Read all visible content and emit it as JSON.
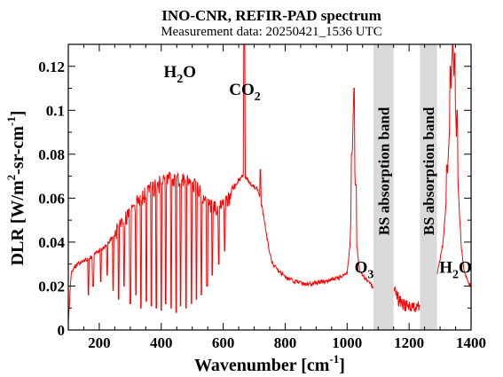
{
  "chart_data": {
    "type": "line",
    "title": "INO-CNR, REFIR-PAD spectrum",
    "subtitle": "Measurement data: 20250421_1536 UTC",
    "xlabel": {
      "main": "Wavenumber [cm",
      "sup": "-1",
      "close": "]"
    },
    "ylabel": {
      "a": "DLR [W/m",
      "sup1": "2",
      "b": "-sr-cm",
      "sup2": "-1",
      "c": "]"
    },
    "xlim": [
      100,
      1400
    ],
    "ylim": [
      0,
      0.13
    ],
    "x_ticks": [
      "200",
      "400",
      "600",
      "800",
      "1000",
      "1200",
      "1400"
    ],
    "y_ticks": [
      "0",
      "0.02",
      "0.04",
      "0.06",
      "0.08",
      "0.1",
      "0.12"
    ],
    "grid": false,
    "line_color": "#ff0000",
    "band_color": "#d9d9d9",
    "bands": [
      {
        "label": "BS absorption band",
        "x_range": [
          1085,
          1150
        ]
      },
      {
        "label": "BS absorption band",
        "x_range": [
          1235,
          1290
        ]
      }
    ],
    "annotations": [
      {
        "base": "H",
        "sub": "2",
        "rest": "O",
        "x": 460,
        "y": 0.115
      },
      {
        "base": "CO",
        "sub": "2",
        "rest": "",
        "x": 670,
        "y": 0.107
      },
      {
        "base": "O",
        "sub": "3",
        "rest": "",
        "x": 1055,
        "y": 0.026
      },
      {
        "base": "H",
        "sub": "2",
        "rest": "O",
        "x": 1350,
        "y": 0.026
      }
    ],
    "series": [
      {
        "envelope": [
          [
            100,
            0.004
          ],
          [
            110,
            0.027
          ],
          [
            130,
            0.03
          ],
          [
            150,
            0.031
          ],
          [
            170,
            0.033
          ],
          [
            190,
            0.035
          ],
          [
            210,
            0.037
          ],
          [
            230,
            0.04
          ],
          [
            250,
            0.044
          ],
          [
            270,
            0.048
          ],
          [
            290,
            0.051
          ],
          [
            310,
            0.055
          ],
          [
            330,
            0.059
          ],
          [
            350,
            0.062
          ],
          [
            370,
            0.064
          ],
          [
            390,
            0.066
          ],
          [
            410,
            0.067
          ],
          [
            430,
            0.068
          ],
          [
            450,
            0.0685
          ],
          [
            470,
            0.068
          ],
          [
            490,
            0.067
          ],
          [
            510,
            0.065
          ],
          [
            530,
            0.062
          ],
          [
            550,
            0.058
          ],
          [
            570,
            0.055
          ],
          [
            590,
            0.055
          ],
          [
            610,
            0.058
          ],
          [
            630,
            0.063
          ],
          [
            650,
            0.068
          ],
          [
            660,
            0.07
          ],
          [
            670,
            0.07
          ],
          [
            680,
            0.068
          ],
          [
            690,
            0.066
          ],
          [
            700,
            0.065
          ],
          [
            710,
            0.064
          ],
          [
            720,
            0.06
          ],
          [
            730,
            0.052
          ],
          [
            740,
            0.043
          ],
          [
            750,
            0.035
          ],
          [
            760,
            0.03
          ],
          [
            780,
            0.027
          ],
          [
            800,
            0.024
          ],
          [
            830,
            0.022
          ],
          [
            860,
            0.021
          ],
          [
            890,
            0.021
          ],
          [
            920,
            0.022
          ],
          [
            950,
            0.023
          ],
          [
            980,
            0.024
          ],
          [
            1000,
            0.026
          ],
          [
            1010,
            0.04
          ],
          [
            1020,
            0.1
          ],
          [
            1030,
            0.04
          ],
          [
            1040,
            0.027
          ],
          [
            1060,
            0.023
          ],
          [
            1080,
            0.02
          ],
          [
            1085,
            0.019
          ],
          [
            1150,
            0.018
          ],
          [
            1170,
            0.013
          ],
          [
            1190,
            0.011
          ],
          [
            1210,
            0.01
          ],
          [
            1230,
            0.011
          ],
          [
            1235,
            0.011
          ],
          [
            1290,
            0.025
          ],
          [
            1300,
            0.032
          ],
          [
            1310,
            0.04
          ],
          [
            1320,
            0.06
          ],
          [
            1330,
            0.09
          ],
          [
            1340,
            0.13
          ],
          [
            1350,
            0.1
          ],
          [
            1360,
            0.06
          ],
          [
            1370,
            0.035
          ],
          [
            1380,
            0.025
          ],
          [
            1390,
            0.022
          ],
          [
            1400,
            0.02
          ]
        ],
        "dips": [
          [
            165,
            0.016
          ],
          [
            180,
            0.02
          ],
          [
            205,
            0.022
          ],
          [
            225,
            0.025
          ],
          [
            245,
            0.018
          ],
          [
            262,
            0.014
          ],
          [
            280,
            0.02
          ],
          [
            300,
            0.012
          ],
          [
            318,
            0.016
          ],
          [
            335,
            0.01
          ],
          [
            352,
            0.013
          ],
          [
            368,
            0.011
          ],
          [
            384,
            0.01
          ],
          [
            400,
            0.009
          ],
          [
            415,
            0.012
          ],
          [
            432,
            0.01
          ],
          [
            448,
            0.008
          ],
          [
            463,
            0.011
          ],
          [
            480,
            0.01
          ],
          [
            497,
            0.012
          ],
          [
            513,
            0.014
          ],
          [
            530,
            0.016
          ],
          [
            548,
            0.02
          ],
          [
            565,
            0.025
          ],
          [
            585,
            0.03
          ],
          [
            605,
            0.036
          ]
        ],
        "spikes": [
          [
            668,
            0.13
          ],
          [
            720,
            0.073
          ],
          [
            1015,
            0.08
          ],
          [
            1022,
            0.11
          ],
          [
            1028,
            0.066
          ],
          [
            1322,
            0.075
          ],
          [
            1333,
            0.12
          ],
          [
            1341,
            0.13
          ],
          [
            1347,
            0.126
          ],
          [
            1355,
            0.1
          ]
        ]
      }
    ]
  }
}
